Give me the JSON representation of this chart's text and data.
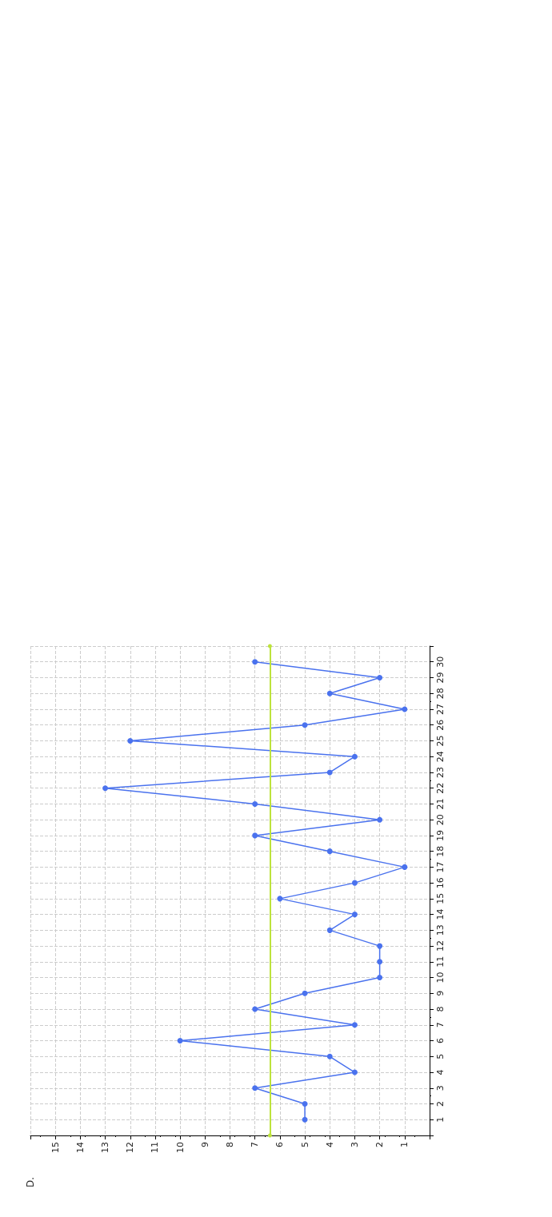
{
  "chart_data": {
    "type": "line",
    "title": "D.",
    "x": [
      5,
      5,
      7,
      3,
      4,
      10,
      3,
      7,
      5,
      2,
      2,
      2,
      4,
      3,
      6,
      3,
      1,
      4,
      7,
      2,
      7,
      13,
      4,
      3,
      12,
      5,
      1,
      4,
      2,
      7
    ],
    "series": [
      {
        "color": "#4a72ee",
        "values": [
          1,
          2,
          3,
          4,
          5,
          6,
          7,
          8,
          9,
          10,
          11,
          12,
          13,
          14,
          15,
          16,
          17,
          18,
          19,
          20,
          21,
          22,
          23,
          24,
          25,
          26,
          27,
          28,
          29,
          30
        ]
      }
    ],
    "xlim": [
      16,
      0
    ],
    "xticks": [
      {
        "value": 0,
        "label": null
      },
      1,
      2,
      3,
      4,
      5,
      6,
      7,
      8,
      9,
      10,
      11,
      12,
      13,
      14,
      15,
      {
        "value": 16,
        "label": null
      }
    ],
    "ylim": [
      0,
      31
    ],
    "yticks": [
      {
        "value": 0,
        "label": null
      },
      1,
      2,
      3,
      4,
      5,
      6,
      7,
      8,
      9,
      10,
      11,
      12,
      13,
      14,
      15,
      16,
      17,
      18,
      19,
      20,
      21,
      22,
      23,
      24,
      25,
      26,
      27,
      28,
      29,
      30,
      {
        "value": 31,
        "label": null
      }
    ],
    "ref_lines": [
      {
        "axis": "x",
        "value": 6.4,
        "color": "#bde33c"
      }
    ],
    "grid": true,
    "marker": "circle",
    "line_style": "solid"
  }
}
